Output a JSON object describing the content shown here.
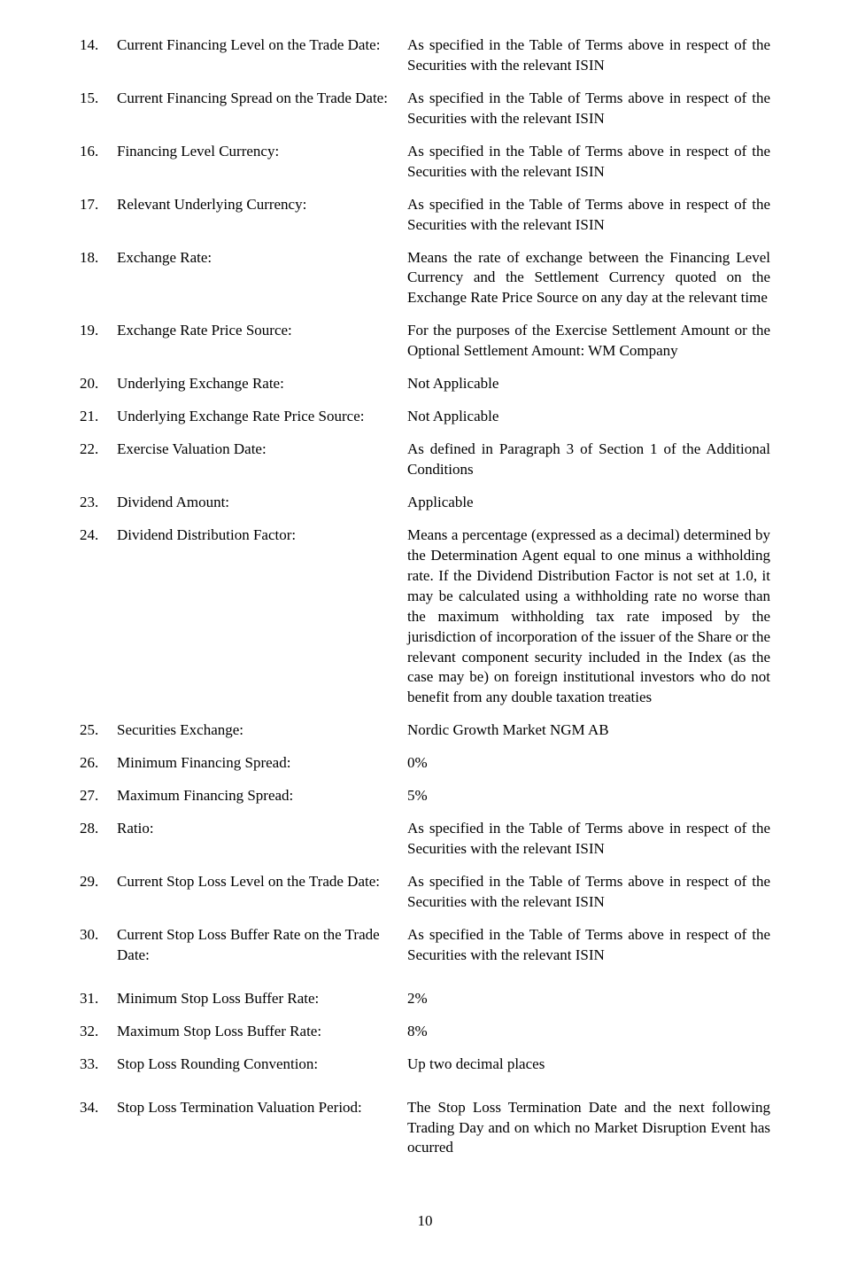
{
  "font": {
    "family": "Times New Roman",
    "size_pt": 12
  },
  "page_number": "10",
  "rows": [
    {
      "num": "14.",
      "label": "Current Financing Level on the Trade Date:",
      "value": "As specified in the Table of Terms above in respect of the Securities with the relevant ISIN"
    },
    {
      "num": "15.",
      "label": "Current Financing Spread on the Trade Date:",
      "value": "As specified in the Table of Terms above in respect of the Securities with the relevant ISIN"
    },
    {
      "num": "16.",
      "label": "Financing Level Currency:",
      "value": "As specified in the Table of Terms above in respect of the Securities with the relevant ISIN"
    },
    {
      "num": "17.",
      "label": "Relevant Underlying Currency:",
      "value": "As specified in the Table of Terms above in respect of the Securities with the relevant ISIN"
    },
    {
      "num": "18.",
      "label": "Exchange Rate:",
      "value": "Means the rate of exchange between the Financing Level Currency and the Settlement Currency quoted on the Exchange Rate Price Source on any day at the relevant time"
    },
    {
      "num": "19.",
      "label": "Exchange Rate Price Source:",
      "value": "For the purposes of the Exercise Settlement Amount or the Optional Settlement Amount: WM Company"
    },
    {
      "num": "20.",
      "label": "Underlying Exchange Rate:",
      "value": "Not Applicable"
    },
    {
      "num": "21.",
      "label": "Underlying Exchange Rate Price Source:",
      "value": "Not Applicable"
    },
    {
      "num": "22.",
      "label": "Exercise Valuation Date:",
      "value": "As defined in Paragraph 3 of Section 1 of the Additional Conditions"
    },
    {
      "num": "23.",
      "label": "Dividend Amount:",
      "value": "Applicable"
    },
    {
      "num": "24.",
      "label": "Dividend Distribution Factor:",
      "value": "Means a percentage (expressed as a decimal) determined by the Determination Agent equal to one minus a withholding rate. If the Dividend Distribution Factor is not set at 1.0, it may be calculated using a withholding rate no worse than the maximum withholding tax rate imposed by the jurisdiction of incorporation of the issuer of the Share or the relevant component security included in the Index (as the case may be) on foreign institutional investors who do not benefit from any double taxation treaties"
    },
    {
      "num": "25.",
      "label": "Securities Exchange:",
      "value": "Nordic Growth Market NGM AB"
    },
    {
      "num": "26.",
      "label": "Minimum Financing Spread:",
      "value": "0%"
    },
    {
      "num": "27.",
      "label": "Maximum Financing Spread:",
      "value": "5%"
    },
    {
      "num": "28.",
      "label": "Ratio:",
      "value": "As specified in the Table of Terms above in respect of the Securities with the relevant ISIN"
    },
    {
      "num": "29.",
      "label": "Current Stop Loss Level on the Trade Date:",
      "value": "As specified in the Table of Terms above in respect of the Securities with the relevant ISIN"
    },
    {
      "num": "30.",
      "label": "Current Stop Loss Buffer Rate on the Trade Date:",
      "value": "As specified in the Table of Terms above in respect of the Securities with the relevant ISIN"
    },
    {
      "num": "31.",
      "label": "Minimum Stop Loss Buffer Rate:",
      "value": "2%"
    },
    {
      "num": "32.",
      "label": "Maximum Stop Loss Buffer Rate:",
      "value": "8%"
    },
    {
      "num": "33.",
      "label": "Stop Loss Rounding Convention:",
      "value": "Up two decimal places"
    },
    {
      "num": "34.",
      "label": "Stop Loss Termination Valuation Period:",
      "value": "The Stop Loss Termination Date and the next following Trading Day and on which no Market Disruption Event has ocurred"
    }
  ],
  "extra_gap_after": [
    "30.",
    "33."
  ]
}
